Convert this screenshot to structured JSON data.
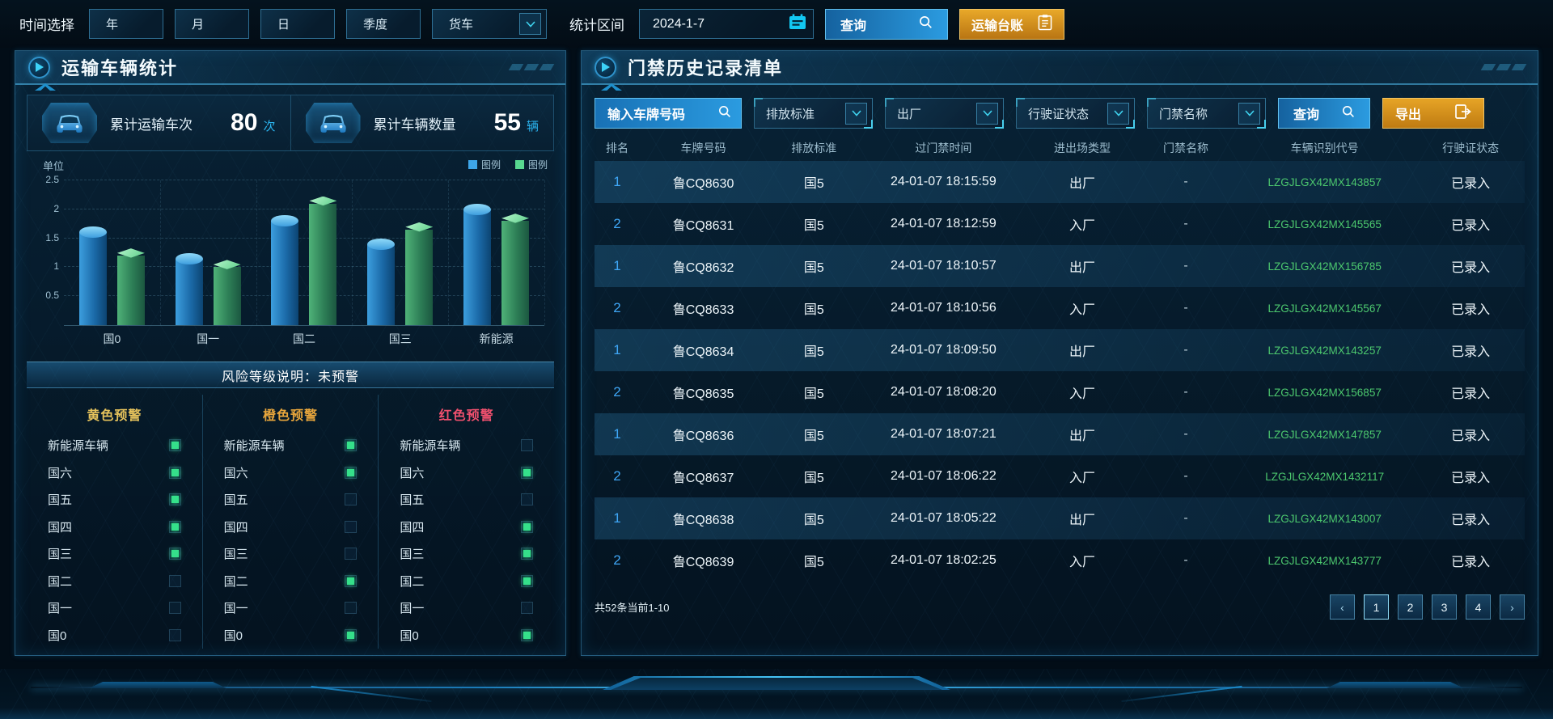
{
  "topbar": {
    "time_label": "时间选择",
    "periods": [
      "年",
      "月",
      "日",
      "季度"
    ],
    "vehicle_type": "货车",
    "range_label": "统计区间",
    "date_value": "2024-1-7",
    "query_label": "查询",
    "ledger_label": "运输台账"
  },
  "left_panel": {
    "title": "运输车辆统计",
    "stats": [
      {
        "label": "累计运输车次",
        "value": "80",
        "unit": "次"
      },
      {
        "label": "累计车辆数量",
        "value": "55",
        "unit": "辆"
      }
    ],
    "risk_note": "风险等级说明：未预警",
    "warnings": [
      {
        "title": "黄色预警",
        "color": "#e6c35c",
        "items": [
          {
            "label": "新能源车辆",
            "on": true
          },
          {
            "label": "国六",
            "on": true
          },
          {
            "label": "国五",
            "on": true
          },
          {
            "label": "国四",
            "on": true
          },
          {
            "label": "国三",
            "on": true
          },
          {
            "label": "国二",
            "on": false
          },
          {
            "label": "国一",
            "on": false
          },
          {
            "label": "国0",
            "on": false
          }
        ]
      },
      {
        "title": "橙色预警",
        "color": "#e8a63c",
        "items": [
          {
            "label": "新能源车辆",
            "on": true
          },
          {
            "label": "国六",
            "on": true
          },
          {
            "label": "国五",
            "on": false
          },
          {
            "label": "国四",
            "on": false
          },
          {
            "label": "国三",
            "on": false
          },
          {
            "label": "国二",
            "on": true
          },
          {
            "label": "国一",
            "on": false
          },
          {
            "label": "国0",
            "on": true
          }
        ]
      },
      {
        "title": "红色预警",
        "color": "#f0506e",
        "items": [
          {
            "label": "新能源车辆",
            "on": false
          },
          {
            "label": "国六",
            "on": true
          },
          {
            "label": "国五",
            "on": false
          },
          {
            "label": "国四",
            "on": true
          },
          {
            "label": "国三",
            "on": true
          },
          {
            "label": "国二",
            "on": true
          },
          {
            "label": "国一",
            "on": false
          },
          {
            "label": "国0",
            "on": true
          }
        ]
      }
    ]
  },
  "chart_data": {
    "type": "bar",
    "title": "",
    "unit_label": "单位",
    "categories": [
      "国0",
      "国一",
      "国二",
      "国三",
      "新能源"
    ],
    "series": [
      {
        "name": "图例",
        "color": "#3ea6e8",
        "values": [
          1.6,
          1.15,
          1.8,
          1.4,
          2.0
        ]
      },
      {
        "name": "图例",
        "color": "#58d890",
        "values": [
          1.2,
          1.0,
          2.1,
          1.65,
          1.8
        ]
      }
    ],
    "ylim": [
      0,
      2.5
    ],
    "yticks": [
      0.5,
      1,
      1.5,
      2,
      2.5
    ],
    "grid": "dashed",
    "legend_position": "top-right"
  },
  "right_panel": {
    "title": "门禁历史记录清单",
    "filters": {
      "plate_placeholder": "输入车牌号码",
      "dropdowns": [
        "排放标准",
        "出厂",
        "行驶证状态",
        "门禁名称"
      ],
      "query_label": "查询",
      "export_label": "导出"
    },
    "table": {
      "headers": [
        "排名",
        "车牌号码",
        "排放标准",
        "过门禁时间",
        "进出场类型",
        "门禁名称",
        "车辆识别代号",
        "行驶证状态"
      ],
      "rows": [
        [
          "1",
          "鲁CQ8630",
          "国5",
          "24-01-07 18:15:59",
          "出厂",
          "-",
          "LZGJLGX42MX143857",
          "已录入"
        ],
        [
          "2",
          "鲁CQ8631",
          "国5",
          "24-01-07 18:12:59",
          "入厂",
          "-",
          "LZGJLGX42MX145565",
          "已录入"
        ],
        [
          "1",
          "鲁CQ8632",
          "国5",
          "24-01-07 18:10:57",
          "出厂",
          "-",
          "LZGJLGX42MX156785",
          "已录入"
        ],
        [
          "2",
          "鲁CQ8633",
          "国5",
          "24-01-07 18:10:56",
          "入厂",
          "-",
          "LZGJLGX42MX145567",
          "已录入"
        ],
        [
          "1",
          "鲁CQ8634",
          "国5",
          "24-01-07 18:09:50",
          "出厂",
          "-",
          "LZGJLGX42MX143257",
          "已录入"
        ],
        [
          "2",
          "鲁CQ8635",
          "国5",
          "24-01-07 18:08:20",
          "入厂",
          "-",
          "LZGJLGX42MX156857",
          "已录入"
        ],
        [
          "1",
          "鲁CQ8636",
          "国5",
          "24-01-07 18:07:21",
          "出厂",
          "-",
          "LZGJLGX42MX147857",
          "已录入"
        ],
        [
          "2",
          "鲁CQ8637",
          "国5",
          "24-01-07 18:06:22",
          "入厂",
          "-",
          "LZGJLGX42MX1432117",
          "已录入"
        ],
        [
          "1",
          "鲁CQ8638",
          "国5",
          "24-01-07 18:05:22",
          "出厂",
          "-",
          "LZGJLGX42MX143007",
          "已录入"
        ],
        [
          "2",
          "鲁CQ8639",
          "国5",
          "24-01-07 18:02:25",
          "入厂",
          "-",
          "LZGJLGX42MX143777",
          "已录入"
        ]
      ]
    },
    "pagination": {
      "summary": "共52条当前1-10",
      "prev": "‹",
      "pages": [
        "1",
        "2",
        "3",
        "4"
      ],
      "next": "›",
      "current": "1"
    }
  },
  "colors": {
    "accent_cyan": "#2bb5f0",
    "query_blue": "#2b9be0",
    "export_orange": "#d9921c",
    "vin_green": "#4cc86e",
    "rank_blue": "#3fa6f5",
    "indicator_green": "#35e08a"
  }
}
